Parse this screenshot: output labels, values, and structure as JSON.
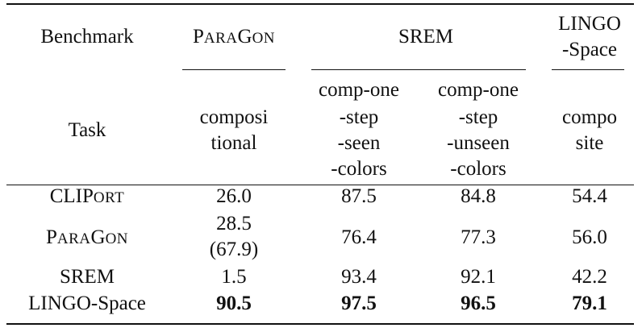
{
  "header": {
    "row1_label": "Benchmark",
    "paragon": {
      "big1": "P",
      "small1": "ARA",
      "big2": "G",
      "small2": "ON"
    },
    "srem": "SREM",
    "lingo_line1": "LINGO",
    "lingo_line2": "-Space",
    "row2_label": "Task",
    "tasks": {
      "paragon": [
        "composi",
        "tional"
      ],
      "srem_seen": [
        "comp-one",
        "-step",
        "-seen",
        "-colors"
      ],
      "srem_unseen": [
        "comp-one",
        "-step",
        "-unseen",
        "-colors"
      ],
      "lingo": [
        "compo",
        "site"
      ]
    }
  },
  "rows": [
    {
      "method_parts": {
        "big1": "CLIP",
        "small1": "ORT",
        "big2": "",
        "small2": ""
      },
      "values": [
        "26.0",
        "87.5",
        "84.8",
        "54.4"
      ]
    },
    {
      "method_parts": {
        "big1": "P",
        "small1": "ARA",
        "big2": "G",
        "small2": "ON"
      },
      "values": [
        "28.5",
        "76.4",
        "77.3",
        "56.0"
      ],
      "paragon_extra": "(67.9)"
    },
    {
      "method": "SREM",
      "values": [
        "1.5",
        "93.4",
        "92.1",
        "42.2"
      ]
    },
    {
      "method": "LINGO-Space",
      "values": [
        "90.5",
        "97.5",
        "96.5",
        "79.1"
      ],
      "bold": true
    }
  ]
}
